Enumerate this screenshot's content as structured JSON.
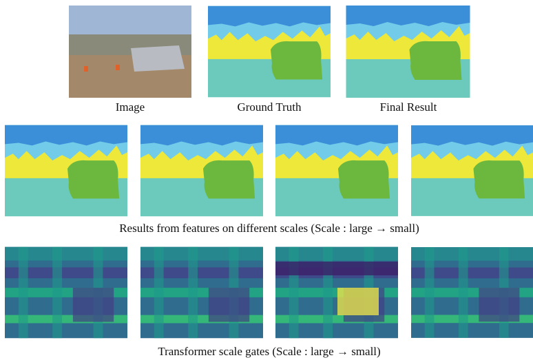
{
  "figure": {
    "top_labels": [
      "Image",
      "Ground Truth",
      "Final Result"
    ],
    "scale_caption": "Results from features on different scales (Scale : large → small)",
    "gate_caption": "Transformer scale gates  (Scale : large → small)"
  }
}
